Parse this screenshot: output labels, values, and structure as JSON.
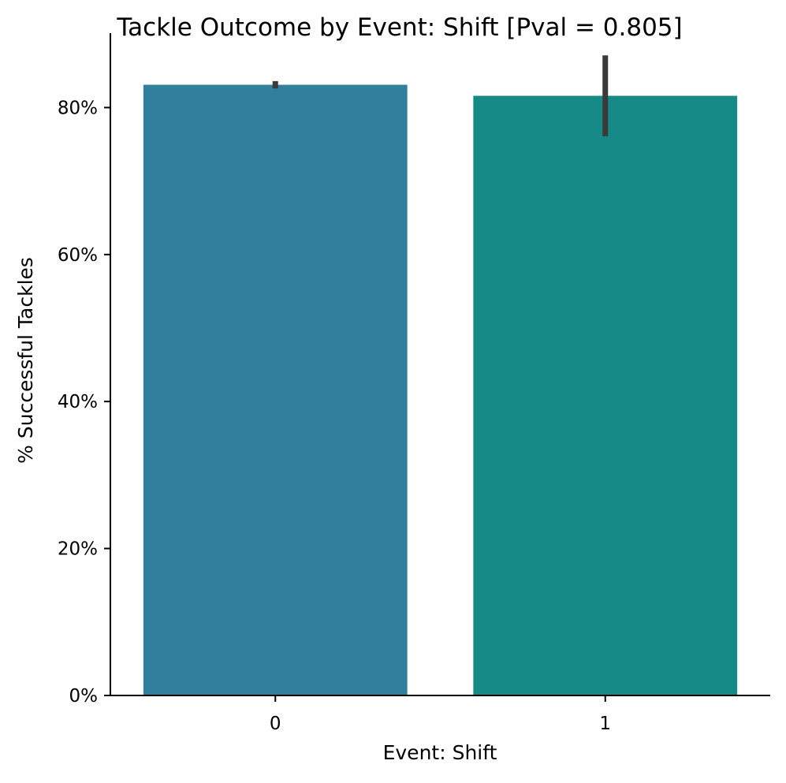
{
  "chart_data": {
    "type": "bar",
    "title": "Tackle Outcome by Event: Shift [Pval = 0.805]",
    "xlabel": "Event: Shift",
    "ylabel": "% Successful Tackles",
    "categories": [
      "0",
      "1"
    ],
    "values": [
      0.831,
      0.816
    ],
    "error_bars": [
      {
        "low": 0.826,
        "high": 0.836
      },
      {
        "low": 0.761,
        "high": 0.871
      }
    ],
    "ylim": [
      0,
      0.87
    ],
    "yticks": [
      0,
      0.2,
      0.4,
      0.6,
      0.8
    ],
    "ytick_labels": [
      "0%",
      "20%",
      "40%",
      "60%",
      "80%"
    ],
    "y_format": "percent",
    "grid": false,
    "colors": [
      "#327f9d",
      "#168a87"
    ],
    "errorbar_color": "#3a3a3a"
  }
}
